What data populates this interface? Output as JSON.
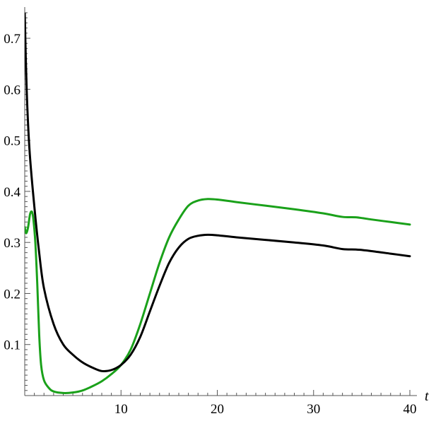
{
  "chart_data": {
    "type": "line",
    "xlabel": "t",
    "ylabel": "",
    "xlim": [
      0,
      40
    ],
    "ylim": [
      0,
      0.75
    ],
    "x_ticks": [
      10,
      20,
      30,
      40
    ],
    "y_ticks": [
      0.1,
      0.2,
      0.3,
      0.4,
      0.5,
      0.6,
      0.7
    ],
    "grid": false,
    "series": [
      {
        "color": "#000000",
        "points": [
          [
            0,
            0.75
          ],
          [
            0.2,
            0.6
          ],
          [
            0.5,
            0.48
          ],
          [
            1,
            0.37
          ],
          [
            1.5,
            0.28
          ],
          [
            2,
            0.21
          ],
          [
            3,
            0.14
          ],
          [
            4,
            0.1
          ],
          [
            5,
            0.08
          ],
          [
            6,
            0.065
          ],
          [
            7,
            0.055
          ],
          [
            8,
            0.048
          ],
          [
            9,
            0.05
          ],
          [
            10,
            0.06
          ],
          [
            11,
            0.08
          ],
          [
            12,
            0.115
          ],
          [
            13,
            0.165
          ],
          [
            14,
            0.215
          ],
          [
            15,
            0.26
          ],
          [
            16,
            0.29
          ],
          [
            17,
            0.307
          ],
          [
            18,
            0.313
          ],
          [
            19,
            0.315
          ],
          [
            20,
            0.314
          ],
          [
            22,
            0.31
          ],
          [
            25,
            0.305
          ],
          [
            28,
            0.3
          ],
          [
            31,
            0.294
          ],
          [
            33,
            0.287
          ],
          [
            34.5,
            0.286
          ],
          [
            36,
            0.283
          ],
          [
            38,
            0.278
          ],
          [
            40,
            0.273
          ]
        ]
      },
      {
        "color": "#1aa11a",
        "points": [
          [
            0,
            0.33
          ],
          [
            0.15,
            0.318
          ],
          [
            0.35,
            0.33
          ],
          [
            0.55,
            0.355
          ],
          [
            0.75,
            0.36
          ],
          [
            0.9,
            0.345
          ],
          [
            1.1,
            0.3
          ],
          [
            1.3,
            0.22
          ],
          [
            1.5,
            0.12
          ],
          [
            1.7,
            0.06
          ],
          [
            2,
            0.03
          ],
          [
            2.5,
            0.015
          ],
          [
            3,
            0.008
          ],
          [
            4,
            0.005
          ],
          [
            5,
            0.006
          ],
          [
            6,
            0.01
          ],
          [
            7,
            0.018
          ],
          [
            8,
            0.028
          ],
          [
            9,
            0.042
          ],
          [
            10,
            0.06
          ],
          [
            11,
            0.09
          ],
          [
            12,
            0.14
          ],
          [
            13,
            0.2
          ],
          [
            14,
            0.26
          ],
          [
            15,
            0.31
          ],
          [
            16,
            0.345
          ],
          [
            17,
            0.372
          ],
          [
            18,
            0.382
          ],
          [
            19,
            0.385
          ],
          [
            20,
            0.384
          ],
          [
            22,
            0.379
          ],
          [
            25,
            0.372
          ],
          [
            28,
            0.365
          ],
          [
            31,
            0.357
          ],
          [
            33,
            0.35
          ],
          [
            34.5,
            0.349
          ],
          [
            36,
            0.345
          ],
          [
            38,
            0.34
          ],
          [
            40,
            0.335
          ]
        ]
      }
    ]
  }
}
